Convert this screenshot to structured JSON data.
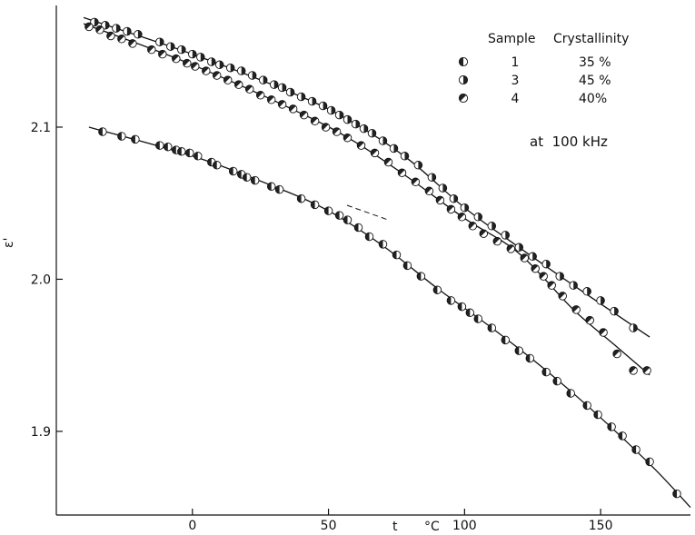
{
  "chart_data": {
    "type": "scatter",
    "xlabel": "t",
    "xunit": "°C",
    "ylabel": "ε'",
    "xlim": [
      -50,
      183
    ],
    "ylim": [
      1.845,
      2.18
    ],
    "x_ticks": [
      0,
      50,
      100,
      150
    ],
    "x_tick_labels": [
      "0",
      "50",
      "100",
      "150"
    ],
    "y_ticks": [
      1.9,
      2.0,
      2.1
    ],
    "y_tick_labels": [
      "1.9",
      "2.0",
      "2.1"
    ],
    "grid": false,
    "legend_placement": "top-right",
    "legend": {
      "header_sample": "Sample",
      "header_crystallinity": "Crystallinity",
      "rows": [
        {
          "sample": "1",
          "crystallinity": "35 %",
          "marker": "left-half"
        },
        {
          "sample": "3",
          "crystallinity": "45 %",
          "marker": "right-half"
        },
        {
          "sample": "4",
          "crystallinity": "40%",
          "marker": "diagonal-half"
        }
      ]
    },
    "annotation": "at  100 kHz",
    "series": [
      {
        "sample": "1",
        "marker": "left-half",
        "points": [
          [
            -33,
            2.097
          ],
          [
            -26,
            2.094
          ],
          [
            -21,
            2.092
          ],
          [
            -12,
            2.088
          ],
          [
            -9,
            2.087
          ],
          [
            -6,
            2.085
          ],
          [
            -4,
            2.084
          ],
          [
            -1,
            2.083
          ],
          [
            2,
            2.081
          ],
          [
            7,
            2.077
          ],
          [
            9,
            2.075
          ],
          [
            15,
            2.071
          ],
          [
            18,
            2.069
          ],
          [
            20,
            2.067
          ],
          [
            23,
            2.065
          ],
          [
            29,
            2.061
          ],
          [
            32,
            2.059
          ],
          [
            40,
            2.053
          ],
          [
            45,
            2.049
          ],
          [
            50,
            2.045
          ],
          [
            54,
            2.042
          ],
          [
            57,
            2.039
          ],
          [
            61,
            2.034
          ],
          [
            65,
            2.028
          ],
          [
            70,
            2.023
          ],
          [
            75,
            2.016
          ],
          [
            79,
            2.009
          ],
          [
            84,
            2.002
          ],
          [
            90,
            1.993
          ],
          [
            95,
            1.986
          ],
          [
            99,
            1.982
          ],
          [
            102,
            1.978
          ],
          [
            105,
            1.974
          ],
          [
            110,
            1.968
          ],
          [
            115,
            1.96
          ],
          [
            120,
            1.953
          ],
          [
            124,
            1.948
          ],
          [
            130,
            1.939
          ],
          [
            134,
            1.933
          ],
          [
            139,
            1.925
          ],
          [
            145,
            1.917
          ],
          [
            149,
            1.911
          ],
          [
            154,
            1.903
          ],
          [
            158,
            1.897
          ],
          [
            163,
            1.888
          ],
          [
            168,
            1.88
          ],
          [
            178,
            1.859
          ]
        ],
        "curve": [
          [
            -38,
            2.1
          ],
          [
            0,
            2.081
          ],
          [
            30,
            2.061
          ],
          [
            50,
            2.045
          ],
          [
            70,
            2.022
          ],
          [
            90,
            1.994
          ],
          [
            110,
            1.968
          ],
          [
            130,
            1.94
          ],
          [
            150,
            1.909
          ],
          [
            170,
            1.875
          ],
          [
            183,
            1.85
          ]
        ]
      },
      {
        "sample": "3",
        "marker": "right-half",
        "points": [
          [
            -36,
            2.169
          ],
          [
            -32,
            2.167
          ],
          [
            -28,
            2.165
          ],
          [
            -24,
            2.163
          ],
          [
            -20,
            2.161
          ],
          [
            -12,
            2.156
          ],
          [
            -8,
            2.153
          ],
          [
            -4,
            2.151
          ],
          [
            0,
            2.148
          ],
          [
            3,
            2.146
          ],
          [
            7,
            2.143
          ],
          [
            10,
            2.141
          ],
          [
            14,
            2.139
          ],
          [
            18,
            2.137
          ],
          [
            22,
            2.134
          ],
          [
            26,
            2.131
          ],
          [
            30,
            2.128
          ],
          [
            33,
            2.126
          ],
          [
            36,
            2.123
          ],
          [
            40,
            2.12
          ],
          [
            44,
            2.117
          ],
          [
            48,
            2.114
          ],
          [
            51,
            2.111
          ],
          [
            54,
            2.108
          ],
          [
            57,
            2.105
          ],
          [
            60,
            2.102
          ],
          [
            63,
            2.099
          ],
          [
            66,
            2.096
          ],
          [
            70,
            2.091
          ],
          [
            74,
            2.086
          ],
          [
            78,
            2.081
          ],
          [
            83,
            2.075
          ],
          [
            88,
            2.067
          ],
          [
            92,
            2.06
          ],
          [
            96,
            2.053
          ],
          [
            100,
            2.047
          ],
          [
            105,
            2.041
          ],
          [
            110,
            2.035
          ],
          [
            115,
            2.029
          ],
          [
            120,
            2.021
          ],
          [
            125,
            2.015
          ],
          [
            130,
            2.01
          ],
          [
            135,
            2.002
          ],
          [
            140,
            1.996
          ],
          [
            145,
            1.992
          ],
          [
            150,
            1.986
          ],
          [
            155,
            1.979
          ],
          [
            162,
            1.968
          ]
        ],
        "curve": [
          [
            -40,
            2.172
          ],
          [
            0,
            2.148
          ],
          [
            40,
            2.12
          ],
          [
            60,
            2.102
          ],
          [
            80,
            2.078
          ],
          [
            100,
            2.047
          ],
          [
            120,
            2.021
          ],
          [
            140,
            1.996
          ],
          [
            168,
            1.962
          ]
        ]
      },
      {
        "sample": "4",
        "marker": "diagonal-half",
        "points": [
          [
            -38,
            2.166
          ],
          [
            -34,
            2.164
          ],
          [
            -30,
            2.16
          ],
          [
            -26,
            2.158
          ],
          [
            -22,
            2.155
          ],
          [
            -15,
            2.151
          ],
          [
            -11,
            2.148
          ],
          [
            -6,
            2.145
          ],
          [
            -2,
            2.142
          ],
          [
            1,
            2.14
          ],
          [
            5,
            2.137
          ],
          [
            9,
            2.134
          ],
          [
            13,
            2.131
          ],
          [
            17,
            2.128
          ],
          [
            21,
            2.125
          ],
          [
            25,
            2.121
          ],
          [
            29,
            2.118
          ],
          [
            33,
            2.115
          ],
          [
            37,
            2.112
          ],
          [
            41,
            2.108
          ],
          [
            45,
            2.104
          ],
          [
            49,
            2.1
          ],
          [
            53,
            2.097
          ],
          [
            57,
            2.093
          ],
          [
            62,
            2.088
          ],
          [
            67,
            2.083
          ],
          [
            72,
            2.077
          ],
          [
            77,
            2.07
          ],
          [
            82,
            2.064
          ],
          [
            87,
            2.058
          ],
          [
            91,
            2.052
          ],
          [
            95,
            2.046
          ],
          [
            99,
            2.041
          ],
          [
            103,
            2.035
          ],
          [
            107,
            2.03
          ],
          [
            112,
            2.025
          ],
          [
            117,
            2.02
          ],
          [
            122,
            2.014
          ],
          [
            126,
            2.007
          ],
          [
            129,
            2.002
          ],
          [
            132,
            1.996
          ],
          [
            136,
            1.989
          ],
          [
            141,
            1.98
          ],
          [
            146,
            1.973
          ],
          [
            151,
            1.965
          ],
          [
            156,
            1.951
          ],
          [
            162,
            1.94
          ],
          [
            167,
            1.94
          ]
        ],
        "curve": [
          [
            -40,
            2.168
          ],
          [
            0,
            2.141
          ],
          [
            40,
            2.109
          ],
          [
            60,
            2.09
          ],
          [
            80,
            2.066
          ],
          [
            100,
            2.04
          ],
          [
            120,
            2.017
          ],
          [
            140,
            1.98
          ],
          [
            155,
            1.957
          ],
          [
            168,
            1.937
          ]
        ]
      }
    ]
  }
}
